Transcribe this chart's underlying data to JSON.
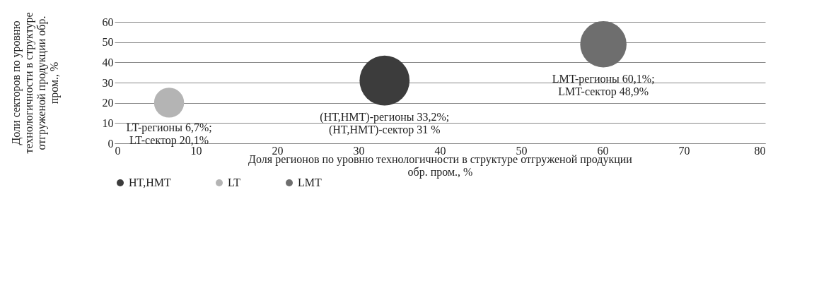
{
  "chart_data": {
    "type": "bubble",
    "xlabel": "Доля регионов по уровню технологичности в структуре отгруженой продукции обр. пром., %",
    "ylabel": "Доли секторов  по уровню технологичности в структуре отгруженой продукции обр. пром., %",
    "xlim": [
      0,
      80
    ],
    "xticks": [
      0,
      10,
      20,
      30,
      40,
      50,
      60,
      70,
      80
    ],
    "ylim": [
      0,
      60
    ],
    "yticks": [
      0,
      10,
      20,
      30,
      40,
      50,
      60
    ],
    "grid": "y",
    "legend": "bottom",
    "series": [
      {
        "name": "HT,HMT",
        "color": "#3c3c3c",
        "x": [
          33.2
        ],
        "values": [
          31
        ],
        "sizes": [
          1
        ]
      },
      {
        "name": "LT",
        "color": "#b4b4b4",
        "x": [
          6.7
        ],
        "values": [
          20.1
        ],
        "sizes": [
          0.36
        ]
      },
      {
        "name": "LMT",
        "color": "#6e6e6e",
        "x": [
          60.1
        ],
        "values": [
          48.9
        ],
        "sizes": [
          0.86
        ]
      }
    ],
    "annotations": [
      {
        "text": "LT-регионы 6,7%;\nLT-сектор  20,1%",
        "x": 6.7,
        "y": 20.1
      },
      {
        "text": "(HT,HMT)-регионы 33,2%;\n(HT,HMT)-сектор  31 %",
        "x": 33.2,
        "y": 31
      },
      {
        "text": "LMT-регионы 60,1%;\nLMT-сектор 48,9%",
        "x": 60.1,
        "y": 48.9
      }
    ]
  }
}
